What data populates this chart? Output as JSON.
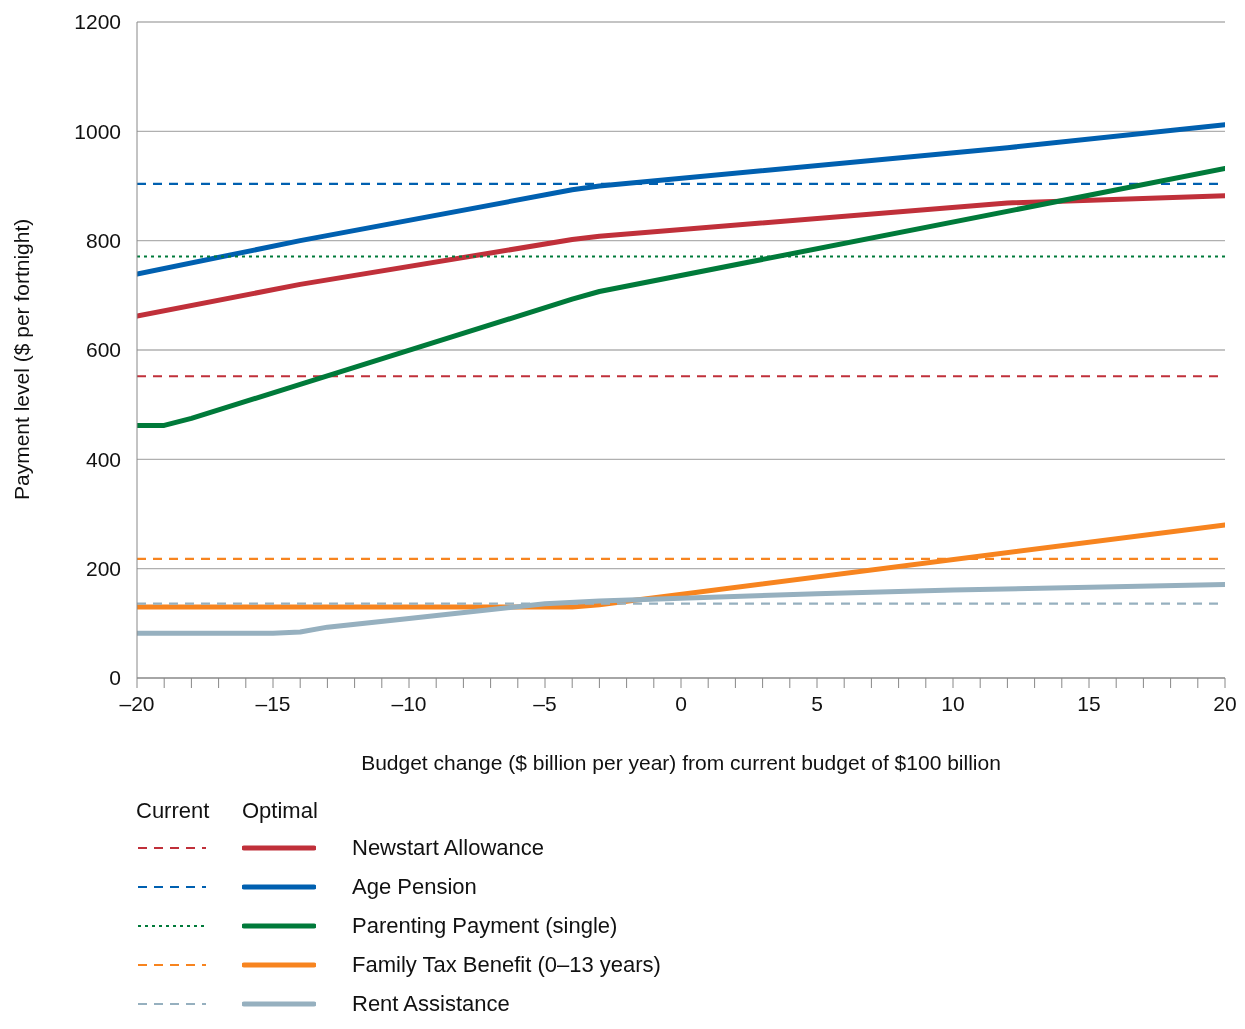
{
  "chart_data": {
    "type": "line",
    "xlabel": "Budget change ($ billion per year) from current budget of $100 billion",
    "ylabel": "Payment level ($ per fortnight)",
    "annotations": [
      "Current",
      "Optimal"
    ],
    "xlim": [
      -20,
      20
    ],
    "ylim": [
      0,
      1200
    ],
    "yticks": [
      0,
      200,
      400,
      600,
      800,
      1000,
      1200
    ],
    "xticks": [
      {
        "value": -20,
        "label": "–20"
      },
      {
        "value": -19,
        "label": null
      },
      {
        "value": -18,
        "label": null
      },
      {
        "value": -17,
        "label": null
      },
      {
        "value": -16,
        "label": null
      },
      {
        "value": -15,
        "label": "–15"
      },
      {
        "value": -14,
        "label": null
      },
      {
        "value": -13,
        "label": null
      },
      {
        "value": -12,
        "label": null
      },
      {
        "value": -11,
        "label": null
      },
      {
        "value": -10,
        "label": "–10"
      },
      {
        "value": -9,
        "label": null
      },
      {
        "value": -8,
        "label": null
      },
      {
        "value": -7,
        "label": null
      },
      {
        "value": -6,
        "label": null
      },
      {
        "value": -5,
        "label": "–5"
      },
      {
        "value": -4,
        "label": null
      },
      {
        "value": -3,
        "label": null
      },
      {
        "value": -2,
        "label": null
      },
      {
        "value": -1,
        "label": null
      },
      0,
      {
        "value": 1,
        "label": null
      },
      {
        "value": 2,
        "label": null
      },
      {
        "value": 3,
        "label": null
      },
      {
        "value": 4,
        "label": null
      },
      5,
      {
        "value": 6,
        "label": null
      },
      {
        "value": 7,
        "label": null
      },
      {
        "value": 8,
        "label": null
      },
      {
        "value": 9,
        "label": null
      },
      10,
      {
        "value": 11,
        "label": null
      },
      {
        "value": 12,
        "label": null
      },
      {
        "value": 13,
        "label": null
      },
      {
        "value": 14,
        "label": null
      },
      15,
      {
        "value": 16,
        "label": null
      },
      {
        "value": 17,
        "label": null
      },
      {
        "value": 18,
        "label": null
      },
      {
        "value": 19,
        "label": null
      },
      20
    ],
    "grid": "y",
    "legend": "bottom",
    "marker": "none",
    "series": [
      {
        "color": "#c0303a",
        "line_style": "dashed",
        "x": [
          -20,
          20
        ],
        "values": [
          552,
          552
        ]
      },
      {
        "name": "Newstart Allowance",
        "color": "#c0303a",
        "line_style": "solid",
        "x": [
          -20,
          -14,
          -4,
          -3,
          12,
          20
        ],
        "values": [
          662,
          720,
          802,
          808,
          869,
          882
        ]
      },
      {
        "color": "#0060b0",
        "line_style": "dashed",
        "x": [
          -20,
          20
        ],
        "values": [
          904,
          904
        ]
      },
      {
        "name": "Age Pension",
        "color": "#0060b0",
        "line_style": "solid",
        "x": [
          -20,
          -14,
          -4,
          -3,
          12,
          20
        ],
        "values": [
          739,
          800,
          893,
          900,
          970,
          1012
        ]
      },
      {
        "color": "#007a3a",
        "line_style": "dotted",
        "x": [
          -20,
          20
        ],
        "values": [
          771,
          771
        ]
      },
      {
        "name": "Parenting Payment (single)",
        "color": "#007a3a",
        "line_style": "solid",
        "x": [
          -20,
          -19,
          -18,
          -14,
          -4,
          -3,
          20
        ],
        "values": [
          462,
          462,
          475,
          537,
          693,
          707,
          932
        ]
      },
      {
        "color": "#f7841f",
        "line_style": "dashed",
        "x": [
          -20,
          20
        ],
        "values": [
          218,
          218
        ]
      },
      {
        "name": "Family Tax Benefit (0–13 years)",
        "color": "#f7841f",
        "line_style": "solid",
        "x": [
          -20,
          -4,
          -3,
          20
        ],
        "values": [
          130,
          130,
          134,
          280
        ]
      },
      {
        "color": "#96b0bf",
        "line_style": "dashed",
        "x": [
          -20,
          20
        ],
        "values": [
          136,
          136
        ]
      },
      {
        "name": "Rent Assistance",
        "color": "#96b0bf",
        "line_style": "solid",
        "x": [
          -20,
          -15,
          -14,
          -13,
          -10,
          -5,
          -3,
          0,
          5,
          10,
          20
        ],
        "values": [
          82,
          82,
          84,
          93,
          109,
          136,
          141,
          146,
          154,
          161,
          171
        ]
      }
    ]
  }
}
